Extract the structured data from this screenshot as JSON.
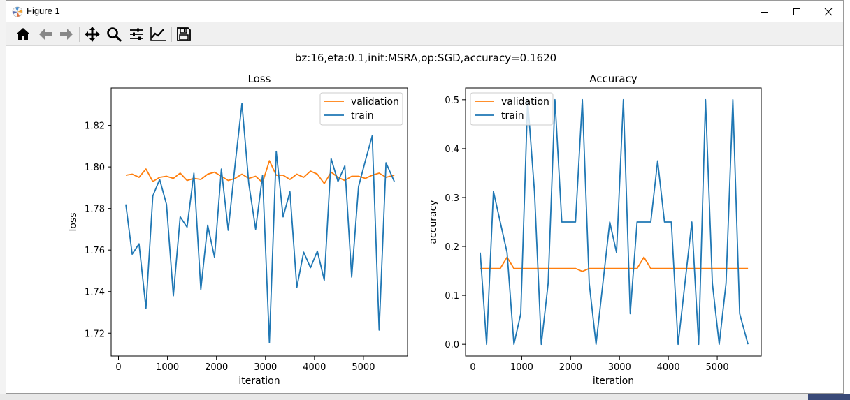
{
  "window": {
    "title": "Figure 1"
  },
  "toolbar": {
    "items": [
      "home-icon",
      "back-arrow-icon",
      "forward-arrow-icon",
      "pan-icon",
      "zoom-icon",
      "configure-subplots-icon",
      "edit-axis-icon",
      "save-icon"
    ]
  },
  "figure": {
    "suptitle": "bz:16,eta:0.1,init:MSRA,op:SGD,accuracy=0.1620"
  },
  "colors": {
    "train": "#1f77b4",
    "validation": "#ff7f0e"
  },
  "chart_data": [
    {
      "type": "line",
      "title": "Loss",
      "xlabel": "iteration",
      "ylabel": "loss",
      "xlim": [
        -150,
        5900
      ],
      "ylim": [
        1.709,
        1.838
      ],
      "xticks": [
        0,
        1000,
        2000,
        3000,
        4000,
        5000
      ],
      "yticks": [
        1.72,
        1.74,
        1.76,
        1.78,
        1.8,
        1.82
      ],
      "ytick_labels": [
        "1.72",
        "1.74",
        "1.76",
        "1.78",
        "1.80",
        "1.82"
      ],
      "legend": "top-right",
      "grid": false,
      "series": [
        {
          "name": "validation",
          "color": "#ff7f0e",
          "x": [
            150,
            280,
            420,
            560,
            700,
            840,
            980,
            1120,
            1260,
            1400,
            1540,
            1680,
            1820,
            1960,
            2100,
            2240,
            2380,
            2520,
            2660,
            2800,
            2940,
            3080,
            3220,
            3360,
            3500,
            3640,
            3780,
            3920,
            4060,
            4200,
            4340,
            4480,
            4620,
            4760,
            4900,
            5040,
            5180,
            5320,
            5460,
            5630
          ],
          "y": [
            1.796,
            1.7965,
            1.795,
            1.799,
            1.793,
            1.795,
            1.7955,
            1.7945,
            1.797,
            1.7935,
            1.7945,
            1.794,
            1.7965,
            1.7975,
            1.7955,
            1.7935,
            1.7945,
            1.7965,
            1.7945,
            1.7955,
            1.7925,
            1.803,
            1.796,
            1.796,
            1.794,
            1.7965,
            1.795,
            1.798,
            1.7965,
            1.792,
            1.7975,
            1.795,
            1.7935,
            1.7955,
            1.7955,
            1.7945,
            1.796,
            1.797,
            1.795,
            1.796
          ]
        },
        {
          "name": "train",
          "color": "#1f77b4",
          "x": [
            150,
            280,
            420,
            560,
            700,
            840,
            980,
            1120,
            1260,
            1400,
            1540,
            1680,
            1820,
            1960,
            2100,
            2240,
            2380,
            2520,
            2660,
            2800,
            2940,
            3080,
            3220,
            3360,
            3500,
            3640,
            3780,
            3920,
            4060,
            4200,
            4340,
            4480,
            4620,
            4760,
            4900,
            5040,
            5180,
            5320,
            5460,
            5630
          ],
          "y": [
            1.782,
            1.758,
            1.763,
            1.732,
            1.786,
            1.794,
            1.782,
            1.738,
            1.776,
            1.771,
            1.797,
            1.741,
            1.772,
            1.7565,
            1.799,
            1.7695,
            1.801,
            1.8305,
            1.792,
            1.77,
            1.796,
            1.7155,
            1.8075,
            1.776,
            1.788,
            1.742,
            1.759,
            1.7515,
            1.7595,
            1.7455,
            1.804,
            1.793,
            1.8005,
            1.747,
            1.7905,
            1.803,
            1.815,
            1.7215,
            1.802,
            1.793
          ]
        }
      ]
    },
    {
      "type": "line",
      "title": "Accuracy",
      "xlabel": "iteration",
      "ylabel": "accuracy",
      "xlim": [
        -150,
        5900
      ],
      "ylim": [
        -0.024,
        0.524
      ],
      "xticks": [
        0,
        1000,
        2000,
        3000,
        4000,
        5000
      ],
      "yticks": [
        0.0,
        0.1,
        0.2,
        0.3,
        0.4,
        0.5
      ],
      "ytick_labels": [
        "0.0",
        "0.1",
        "0.2",
        "0.3",
        "0.4",
        "0.5"
      ],
      "legend": "top-left",
      "grid": false,
      "series": [
        {
          "name": "validation",
          "color": "#ff7f0e",
          "x": [
            150,
            280,
            420,
            560,
            700,
            840,
            980,
            1120,
            1260,
            1400,
            1540,
            1680,
            1820,
            1960,
            2100,
            2240,
            2380,
            2520,
            2660,
            2800,
            2940,
            3080,
            3220,
            3360,
            3500,
            3640,
            3780,
            3920,
            4060,
            4200,
            4340,
            4480,
            4620,
            4760,
            4900,
            5040,
            5180,
            5320,
            5460,
            5630
          ],
          "y": [
            0.155,
            0.155,
            0.155,
            0.155,
            0.178,
            0.155,
            0.155,
            0.155,
            0.155,
            0.155,
            0.155,
            0.155,
            0.155,
            0.155,
            0.155,
            0.149,
            0.155,
            0.155,
            0.155,
            0.155,
            0.155,
            0.155,
            0.155,
            0.155,
            0.178,
            0.155,
            0.155,
            0.155,
            0.155,
            0.155,
            0.155,
            0.155,
            0.155,
            0.155,
            0.155,
            0.155,
            0.155,
            0.155,
            0.155,
            0.155
          ]
        },
        {
          "name": "train",
          "color": "#1f77b4",
          "x": [
            150,
            280,
            420,
            560,
            700,
            840,
            980,
            1120,
            1260,
            1400,
            1540,
            1680,
            1820,
            1960,
            2100,
            2240,
            2380,
            2520,
            2660,
            2800,
            2940,
            3080,
            3220,
            3360,
            3500,
            3640,
            3780,
            3920,
            4060,
            4200,
            4340,
            4480,
            4620,
            4760,
            4900,
            5040,
            5180,
            5320,
            5460,
            5630
          ],
          "y": [
            0.1875,
            0.0,
            0.3125,
            0.25,
            0.1875,
            0.0,
            0.0625,
            0.5,
            0.3125,
            0.0,
            0.125,
            0.5,
            0.25,
            0.25,
            0.25,
            0.5,
            0.125,
            0.0,
            0.125,
            0.25,
            0.1875,
            0.5,
            0.0625,
            0.25,
            0.25,
            0.25,
            0.375,
            0.25,
            0.25,
            0.0,
            0.125,
            0.25,
            0.0,
            0.5,
            0.125,
            0.0,
            0.125,
            0.5,
            0.0625,
            0.0
          ]
        }
      ]
    }
  ]
}
